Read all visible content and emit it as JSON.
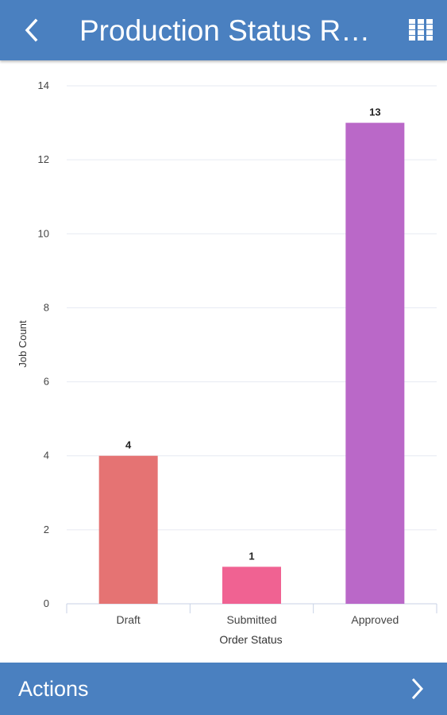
{
  "app_bar": {
    "title": "Production Status Re…",
    "back_icon": "chevron-left-icon",
    "grid_icon": "grid-icon",
    "color": "#4a80c0"
  },
  "chart_data": {
    "type": "bar",
    "categories": [
      "Draft",
      "Submitted",
      "Approved"
    ],
    "values": [
      4,
      1,
      13
    ],
    "data_labels": [
      "4",
      "1",
      "13"
    ],
    "colors": [
      "#e57373",
      "#f06292",
      "#ba68c8"
    ],
    "title": "",
    "xlabel": "Order Status",
    "ylabel": "Job Count",
    "ylim": [
      0,
      14
    ],
    "yticks": [
      "0",
      "2",
      "4",
      "6",
      "8",
      "10",
      "12",
      "14"
    ],
    "grid": true,
    "legend": "none"
  },
  "footer": {
    "label": "Actions",
    "chevron_icon": "chevron-right-icon"
  }
}
